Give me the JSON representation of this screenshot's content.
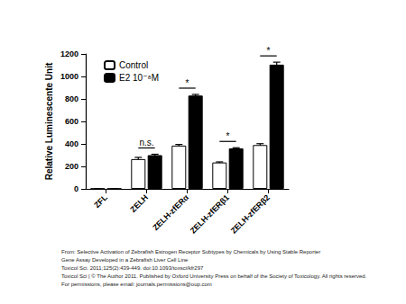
{
  "chart_data": {
    "type": "bar",
    "y_label": "Relative Luminescente Unit",
    "categories": [
      "ZFL",
      "ZELH",
      "ZELH-zfERα",
      "ZELH-zfERβ1",
      "ZELH-zfERβ2"
    ],
    "series": [
      {
        "name": "Control",
        "color": "#ffffff",
        "values": [
          2,
          265,
          385,
          235,
          390
        ],
        "errors": [
          1,
          15,
          10,
          5,
          12
        ]
      },
      {
        "name": "E2 10⁻⁸M",
        "color": "#000000",
        "values": [
          2,
          300,
          830,
          360,
          1105
        ],
        "errors": [
          1,
          8,
          10,
          6,
          22
        ]
      }
    ],
    "annotations": [
      {
        "category": "ZELH",
        "text": "n.s."
      },
      {
        "category": "ZELH-zfERα",
        "text": "*"
      },
      {
        "category": "ZELH-zfERβ1",
        "text": "*"
      },
      {
        "category": "ZELH-zfERβ2",
        "text": "*"
      }
    ],
    "ylim": [
      0,
      1200
    ],
    "yticks": [
      0,
      200,
      400,
      600,
      800,
      1000,
      1200
    ],
    "grid": false,
    "legend": "top-left",
    "caption": [
      "From: Selective Activation of Zebrafish Estrogen Receptor Subtypes by Chemicals by Using Stable Reporter",
      "Gene Assay Developed in a Zebrafish Liver Cell Line",
      "Toxicol Sci. 2011;125(2):439-449. doi:10.1093/toxsci/kfr297",
      "Toxicol Sci | © The Author 2011. Published by Oxford University Press on behalf of the Society of Toxicology. All rights reserved.",
      "For permissions, please email: journals.permissions@oup.com"
    ]
  }
}
